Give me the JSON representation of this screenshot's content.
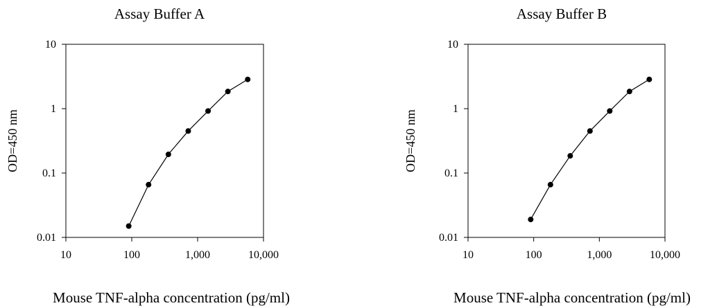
{
  "chart_data": [
    {
      "type": "line",
      "title": "Assay Buffer A",
      "xlabel": "Mouse TNF-alpha concentration (pg/ml)",
      "ylabel": "OD=450 nm",
      "x_scale": "log",
      "y_scale": "log",
      "xlim": [
        10,
        10000
      ],
      "ylim": [
        0.01,
        10
      ],
      "x_ticks": [
        "10",
        "100",
        "1,000",
        "10,000"
      ],
      "y_ticks": [
        "0.01",
        "0.1",
        "1",
        "10"
      ],
      "grid": false,
      "marker": "filled-circle",
      "color": "#000000",
      "x": [
        90,
        180,
        360,
        720,
        1440,
        2880,
        5760
      ],
      "y": [
        0.015,
        0.066,
        0.195,
        0.45,
        0.92,
        1.85,
        2.85
      ]
    },
    {
      "type": "line",
      "title": "Assay Buffer B",
      "xlabel": "Mouse TNF-alpha concentration (pg/ml)",
      "ylabel": "OD=450 nm",
      "x_scale": "log",
      "y_scale": "log",
      "xlim": [
        10,
        10000
      ],
      "ylim": [
        0.01,
        10
      ],
      "x_ticks": [
        "10",
        "100",
        "1,000",
        "10,000"
      ],
      "y_ticks": [
        "0.01",
        "0.1",
        "1",
        "10"
      ],
      "grid": false,
      "marker": "filled-circle",
      "color": "#000000",
      "x": [
        90,
        180,
        360,
        720,
        1440,
        2880,
        5760
      ],
      "y": [
        0.019,
        0.066,
        0.185,
        0.45,
        0.92,
        1.85,
        2.85
      ]
    }
  ]
}
